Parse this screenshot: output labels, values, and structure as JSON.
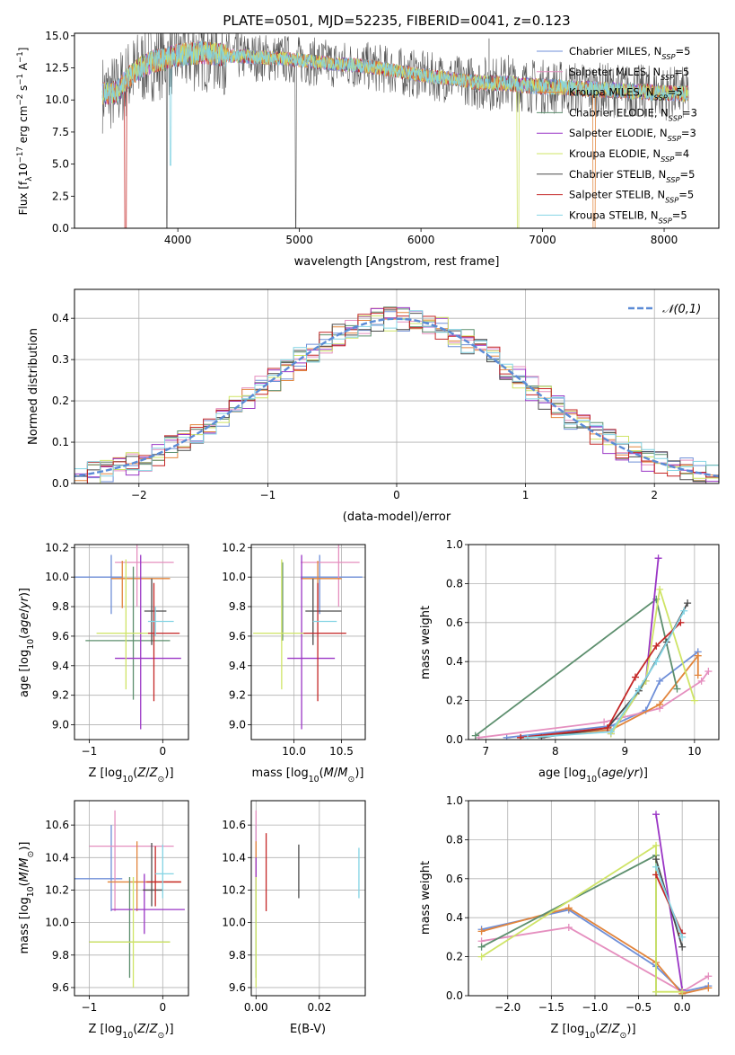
{
  "figure_title": "PLATE=0501, MJD=52235, FIBERID=0041, z=0.123",
  "palette": {
    "Chabrier MILES": "#6f8fd8",
    "Salpeter MILES": "#e58fbf",
    "Kroupa MILES": "#e2853c",
    "Chabrier ELODIE": "#5d8f6e",
    "Salpeter ELODIE": "#9a35c5",
    "Kroupa ELODIE": "#cfe466",
    "Chabrier STELIB": "#4a4a4a",
    "Salpeter STELIB": "#c42727",
    "Kroupa STELIB": "#84d4e4"
  },
  "chart_data": [
    {
      "type": "line",
      "panel": "spectrum",
      "title": "PLATE=0501, MJD=52235, FIBERID=0041, z=0.123",
      "xlabel": "wavelength [Angstrom, rest frame]",
      "ylabel": "Flux [f_λ 10^-17 erg cm^-2 s^-1 A^-1]",
      "xlim": [
        3150,
        8450
      ],
      "ylim": [
        0,
        15.2
      ],
      "xticks": [
        4000,
        5000,
        6000,
        7000,
        8000
      ],
      "yticks": [
        "0.0",
        "2.5",
        "5.0",
        "7.5",
        "10.0",
        "12.5",
        "15.0"
      ],
      "legend": "top-right",
      "series": [
        {
          "name": "Chabrier MILES, N_SSP=5"
        },
        {
          "name": "Salpeter MILES, N_SSP=5"
        },
        {
          "name": "Kroupa MILES, N_SSP=5"
        },
        {
          "name": "Chabrier ELODIE, N_SSP=3"
        },
        {
          "name": "Salpeter ELODIE, N_SSP=3"
        },
        {
          "name": "Kroupa ELODIE, N_SSP=4"
        },
        {
          "name": "Chabrier STELIB, N_SSP=5"
        },
        {
          "name": "Salpeter STELIB, N_SSP=5"
        },
        {
          "name": "Kroupa STELIB, N_SSP=5"
        }
      ],
      "continuum": {
        "x": [
          3380,
          3500,
          3600,
          3700,
          3800,
          3900,
          4000,
          4100,
          4200,
          4300,
          4500,
          4700,
          4900,
          5100,
          5300,
          5500,
          5700,
          5900,
          6100,
          6300,
          6500,
          6700,
          6900,
          7100,
          7300,
          7500,
          7700,
          7900,
          8100
        ],
        "y": [
          10.5,
          10.6,
          11.8,
          12.6,
          13.0,
          13.2,
          13.5,
          13.6,
          13.7,
          13.6,
          13.4,
          13.3,
          13.2,
          13.0,
          12.8,
          12.7,
          12.4,
          12.1,
          11.8,
          11.6,
          11.3,
          11.3,
          11.1,
          11.0,
          10.9,
          10.8,
          10.7,
          10.6,
          10.5
        ]
      }
    },
    {
      "type": "histogram",
      "panel": "residuals",
      "xlabel": "(data-model)/error",
      "ylabel": "Normed distribution",
      "xlim": [
        -2.5,
        2.5
      ],
      "ylim": [
        0,
        0.47
      ],
      "xticks": [
        "−2",
        "−1",
        "0",
        "1",
        "2"
      ],
      "yticks": [
        "0.0",
        "0.1",
        "0.2",
        "0.3",
        "0.4"
      ],
      "bin_width": 0.1,
      "legend": "top-right",
      "reference_curve": {
        "name": "𝒩(0,1)",
        "mean": 0,
        "sigma": 1
      }
    },
    {
      "type": "scatter",
      "panel": "age-vs-Z",
      "xlabel": "Z [log10(Z/Z⊙)]",
      "ylabel": "age  [log10(age/yr)]",
      "xlim": [
        -1.2,
        0.35
      ],
      "ylim": [
        8.9,
        10.22
      ],
      "xticks": [
        "−1",
        "0"
      ],
      "yticks": [
        "9.0",
        "9.2",
        "9.4",
        "9.6",
        "9.8",
        "10.0",
        "10.2"
      ],
      "series": [
        {
          "model": "Chabrier MILES",
          "x": -0.7,
          "xerr": [
            0.5,
            0.15
          ],
          "y": 10.0,
          "yerr": [
            0.25,
            0.15
          ]
        },
        {
          "model": "Salpeter MILES",
          "x": -0.35,
          "xerr": [
            0.3,
            0.5
          ],
          "y": 10.1,
          "yerr": [
            0.3,
            0.15
          ]
        },
        {
          "model": "Kroupa MILES",
          "x": -0.55,
          "xerr": [
            0.15,
            0.65
          ],
          "y": 9.99,
          "yerr": [
            0.2,
            0.12
          ]
        },
        {
          "model": "Chabrier ELODIE",
          "x": -0.4,
          "xerr": [
            0.65,
            0.5
          ],
          "y": 9.57,
          "yerr": [
            0.4,
            0.5
          ]
        },
        {
          "model": "Salpeter ELODIE",
          "x": -0.3,
          "xerr": [
            0.35,
            0.55
          ],
          "y": 9.45,
          "yerr": [
            0.48,
            0.7
          ]
        },
        {
          "model": "Kroupa ELODIE",
          "x": -0.5,
          "xerr": [
            0.4,
            0.3
          ],
          "y": 9.62,
          "yerr": [
            0.38,
            0.5
          ]
        },
        {
          "model": "Chabrier STELIB",
          "x": -0.15,
          "xerr": [
            0.1,
            0.2
          ],
          "y": 9.77,
          "yerr": [
            0.23,
            0.22
          ]
        },
        {
          "model": "Salpeter STELIB",
          "x": -0.12,
          "xerr": [
            0.08,
            0.35
          ],
          "y": 9.62,
          "yerr": [
            0.46,
            0.34
          ]
        },
        {
          "model": "Kroupa STELIB",
          "x": -0.1,
          "xerr": [
            0.1,
            0.25
          ],
          "y": 9.7,
          "yerr": [
            0.1,
            0.1
          ]
        }
      ]
    },
    {
      "type": "scatter",
      "panel": "age-vs-mass",
      "xlabel": "mass [log10(M/M⊙)]",
      "xlim": [
        9.55,
        10.75
      ],
      "ylim": [
        8.9,
        10.22
      ],
      "xticks": [
        "10.0",
        "10.5"
      ],
      "yticks": [
        "9.0",
        "9.2",
        "9.4",
        "9.6",
        "9.8",
        "10.0",
        "10.2"
      ],
      "series": [
        {
          "model": "Chabrier MILES",
          "x": 10.27,
          "xerr": [
            0.2,
            0.45
          ],
          "y": 10.0,
          "yerr": [
            0.25,
            0.15
          ]
        },
        {
          "model": "Salpeter MILES",
          "x": 10.47,
          "xerr": [
            0.4,
            0.22
          ],
          "y": 10.1,
          "yerr": [
            0.3,
            0.15
          ]
        },
        {
          "model": "Kroupa MILES",
          "x": 10.25,
          "xerr": [
            0.18,
            0.25
          ],
          "y": 9.99,
          "yerr": [
            0.2,
            0.12
          ]
        },
        {
          "model": "Chabrier ELODIE",
          "x": 9.88,
          "xerr": [
            0.0,
            0.0
          ],
          "y": 9.57,
          "yerr": [
            0.0,
            0.53
          ]
        },
        {
          "model": "Salpeter ELODIE",
          "x": 10.08,
          "xerr": [
            0.15,
            0.35
          ],
          "y": 9.45,
          "yerr": [
            0.48,
            0.7
          ]
        },
        {
          "model": "Kroupa ELODIE",
          "x": 9.87,
          "xerr": [
            0.3,
            0.25
          ],
          "y": 9.62,
          "yerr": [
            0.38,
            0.5
          ]
        },
        {
          "model": "Chabrier STELIB",
          "x": 10.2,
          "xerr": [
            0.08,
            0.3
          ],
          "y": 9.77,
          "yerr": [
            0.23,
            0.22
          ]
        },
        {
          "model": "Salpeter STELIB",
          "x": 10.25,
          "xerr": [
            0.15,
            0.3
          ],
          "y": 9.62,
          "yerr": [
            0.46,
            0.34
          ]
        },
        {
          "model": "Kroupa STELIB",
          "x": 10.3,
          "xerr": [
            0.1,
            0.15
          ],
          "y": 9.7,
          "yerr": [
            0.0,
            0.0
          ]
        }
      ]
    },
    {
      "type": "line",
      "panel": "massweight-vs-age",
      "xlabel": "age  [log10(age/yr)]",
      "ylabel": "mass weight",
      "xlim": [
        6.75,
        10.35
      ],
      "ylim": [
        0,
        1.0
      ],
      "xticks": [
        "7",
        "8",
        "9",
        "10"
      ],
      "yticks": [
        "0.0",
        "0.2",
        "0.4",
        "0.6",
        "0.8",
        "1.0"
      ],
      "series": [
        {
          "model": "Chabrier MILES",
          "x": [
            7.3,
            8.8,
            9.3,
            9.5,
            10.05
          ],
          "y": [
            0.01,
            0.07,
            0.15,
            0.3,
            0.45
          ]
        },
        {
          "model": "Salpeter MILES",
          "x": [
            6.9,
            8.7,
            9.5,
            10.1,
            10.2
          ],
          "y": [
            0.01,
            0.09,
            0.16,
            0.3,
            0.35
          ]
        },
        {
          "model": "Kroupa MILES",
          "x": [
            7.5,
            8.8,
            9.5,
            10.05,
            10.05
          ],
          "y": [
            0.01,
            0.05,
            0.18,
            0.43,
            0.33
          ]
        },
        {
          "model": "Chabrier ELODIE",
          "x": [
            6.85,
            9.45,
            9.75
          ],
          "y": [
            0.02,
            0.72,
            0.26
          ]
        },
        {
          "model": "Salpeter ELODIE",
          "x": [
            8.8,
            9.3,
            9.48
          ],
          "y": [
            0.03,
            0.3,
            0.93
          ]
        },
        {
          "model": "Kroupa ELODIE",
          "x": [
            8.8,
            9.3,
            9.5,
            10.0
          ],
          "y": [
            0.03,
            0.3,
            0.77,
            0.2
          ]
        },
        {
          "model": "Chabrier STELIB",
          "x": [
            7.8,
            8.75,
            9.2,
            9.6,
            9.9
          ],
          "y": [
            0.01,
            0.06,
            0.25,
            0.5,
            0.7
          ]
        },
        {
          "model": "Salpeter STELIB",
          "x": [
            7.5,
            8.75,
            9.15,
            9.45,
            9.8
          ],
          "y": [
            0.01,
            0.06,
            0.32,
            0.48,
            0.6
          ]
        },
        {
          "model": "Kroupa STELIB",
          "x": [
            7.6,
            8.8,
            9.2,
            9.45,
            9.85
          ],
          "y": [
            0.01,
            0.04,
            0.26,
            0.4,
            0.66
          ]
        }
      ]
    },
    {
      "type": "scatter",
      "panel": "mass-vs-Z",
      "xlabel": "Z [log10(Z/Z⊙)]",
      "ylabel": "mass [log10(M/M⊙)]",
      "xlim": [
        -1.2,
        0.35
      ],
      "ylim": [
        9.55,
        10.75
      ],
      "xticks": [
        "−1",
        "0"
      ],
      "yticks": [
        "9.6",
        "9.8",
        "10.0",
        "10.2",
        "10.4",
        "10.6"
      ],
      "series": [
        {
          "model": "Chabrier MILES",
          "x": -0.7,
          "xerr": [
            0.5,
            0.15
          ],
          "y": 10.27,
          "yerr": [
            0.2,
            0.33
          ]
        },
        {
          "model": "Salpeter MILES",
          "x": -0.65,
          "xerr": [
            0.35,
            0.8
          ],
          "y": 10.47,
          "yerr": [
            0.4,
            0.22
          ]
        },
        {
          "model": "Kroupa MILES",
          "x": -0.35,
          "xerr": [
            0.4,
            0.6
          ],
          "y": 10.25,
          "yerr": [
            0.18,
            0.25
          ]
        },
        {
          "model": "Chabrier ELODIE",
          "x": -0.45,
          "xerr": [
            0.55,
            0.55
          ],
          "y": 9.88,
          "yerr": [
            0.22,
            0.4
          ]
        },
        {
          "model": "Salpeter ELODIE",
          "x": -0.25,
          "xerr": [
            0.45,
            0.55
          ],
          "y": 10.08,
          "yerr": [
            0.15,
            0.22
          ]
        },
        {
          "model": "Kroupa ELODIE",
          "x": -0.4,
          "xerr": [
            0.6,
            0.5
          ],
          "y": 9.88,
          "yerr": [
            0.28,
            0.4
          ]
        },
        {
          "model": "Chabrier STELIB",
          "x": -0.15,
          "xerr": [
            0.12,
            0.15
          ],
          "y": 10.2,
          "yerr": [
            0.1,
            0.29
          ]
        },
        {
          "model": "Salpeter STELIB",
          "x": -0.1,
          "xerr": [
            0.12,
            0.35
          ],
          "y": 10.25,
          "yerr": [
            0.15,
            0.22
          ]
        },
        {
          "model": "Kroupa STELIB",
          "x": 0.0,
          "xerr": [
            0.1,
            0.15
          ],
          "y": 10.3,
          "yerr": [
            0.15,
            0.18
          ]
        }
      ]
    },
    {
      "type": "scatter",
      "panel": "mass-vs-EBV",
      "xlabel": "E(B-V)",
      "xlim": [
        -0.0015,
        0.0345
      ],
      "ylim": [
        9.55,
        10.75
      ],
      "xticks": [
        "0.00",
        "0.02"
      ],
      "yticks": [
        "9.6",
        "9.8",
        "10.0",
        "10.2",
        "10.4",
        "10.6"
      ],
      "series": [
        {
          "model": "Chabrier MILES",
          "x": 0.0,
          "y": 10.27,
          "yerr": [
            0.2,
            0.33
          ]
        },
        {
          "model": "Salpeter MILES",
          "x": 0.0,
          "y": 10.47,
          "yerr": [
            0.4,
            0.22
          ]
        },
        {
          "model": "Kroupa MILES",
          "x": 0.0,
          "y": 10.25,
          "yerr": [
            0.18,
            0.25
          ]
        },
        {
          "model": "Chabrier ELODIE",
          "x": 0.0,
          "y": 9.88,
          "yerr": [
            0.22,
            0.4
          ]
        },
        {
          "model": "Salpeter ELODIE",
          "x": 0.0,
          "y": 10.3,
          "yerr": [
            0.08,
            0.1
          ]
        },
        {
          "model": "Kroupa ELODIE",
          "x": 0.0,
          "y": 9.88,
          "yerr": [
            0.28,
            0.4
          ]
        },
        {
          "model": "Chabrier STELIB",
          "x": 0.0135,
          "y": 10.32,
          "yerr": [
            0.17,
            0.16
          ]
        },
        {
          "model": "Salpeter STELIB",
          "x": 0.0032,
          "y": 10.3,
          "yerr": [
            0.23,
            0.25
          ]
        },
        {
          "model": "Kroupa STELIB",
          "x": 0.0325,
          "y": 10.3,
          "yerr": [
            0.15,
            0.16
          ]
        }
      ]
    },
    {
      "type": "line",
      "panel": "massweight-vs-Z",
      "xlabel": "Z [log10(Z/Z⊙)]",
      "ylabel": "mass weight",
      "xlim": [
        -2.45,
        0.42
      ],
      "ylim": [
        0,
        1.0
      ],
      "xticks": [
        "−2.0",
        "−1.5",
        "−1.0",
        "−0.5",
        "0.0"
      ],
      "yticks": [
        "0.0",
        "0.2",
        "0.4",
        "0.6",
        "0.8",
        "1.0"
      ],
      "series": [
        {
          "model": "Chabrier MILES",
          "x": [
            -2.3,
            -1.3,
            -0.3,
            0.0,
            0.3
          ],
          "y": [
            0.34,
            0.44,
            0.15,
            0.02,
            0.05
          ]
        },
        {
          "model": "Salpeter MILES",
          "x": [
            -2.3,
            -1.3,
            0.0,
            0.3
          ],
          "y": [
            0.28,
            0.35,
            0.02,
            0.1
          ]
        },
        {
          "model": "Kroupa MILES",
          "x": [
            -2.3,
            -1.3,
            -0.3,
            0.0,
            0.3
          ],
          "y": [
            0.33,
            0.45,
            0.17,
            0.01,
            0.04
          ]
        },
        {
          "model": "Chabrier ELODIE",
          "x": [
            -2.3,
            -0.3,
            -0.3
          ],
          "y": [
            0.25,
            0.72,
            0.02
          ]
        },
        {
          "model": "Salpeter ELODIE",
          "x": [
            -0.3,
            0.0
          ],
          "y": [
            0.93,
            0.03
          ]
        },
        {
          "model": "Kroupa ELODIE",
          "x": [
            -2.3,
            -0.3,
            -0.3,
            0.0
          ],
          "y": [
            0.2,
            0.77,
            0.02,
            0.02
          ]
        },
        {
          "model": "Chabrier STELIB",
          "x": [
            -0.3,
            0.0
          ],
          "y": [
            0.7,
            0.25
          ]
        },
        {
          "model": "Salpeter STELIB",
          "x": [
            -0.3,
            0.0
          ],
          "y": [
            0.62,
            0.32
          ]
        },
        {
          "model": "Kroupa STELIB",
          "x": [
            -0.3,
            0.0
          ],
          "y": [
            0.66,
            0.3
          ]
        }
      ]
    }
  ]
}
